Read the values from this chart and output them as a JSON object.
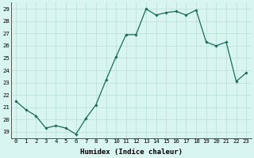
{
  "xlabel": "Humidex (Indice chaleur)",
  "x": [
    0,
    1,
    2,
    3,
    4,
    5,
    6,
    7,
    8,
    9,
    10,
    11,
    12,
    13,
    14,
    15,
    16,
    17,
    18,
    19,
    20,
    21,
    22,
    23
  ],
  "y": [
    21.5,
    20.8,
    20.3,
    19.3,
    19.5,
    19.3,
    18.8,
    20.1,
    21.2,
    23.2,
    25.1,
    26.9,
    26.9,
    29.0,
    28.5,
    28.7,
    28.8,
    28.5,
    28.9,
    26.3,
    26.0,
    26.3,
    23.1,
    23.8
  ],
  "line_color": "#1a6b5a",
  "marker": "D",
  "marker_size": 1.8,
  "linewidth": 0.9,
  "bg_color": "#d8f5f0",
  "grid_color": "#b8ddd6",
  "ylim": [
    18.5,
    29.5
  ],
  "yticks": [
    19,
    20,
    21,
    22,
    23,
    24,
    25,
    26,
    27,
    28,
    29
  ],
  "xticks": [
    0,
    1,
    2,
    3,
    4,
    5,
    6,
    7,
    8,
    9,
    10,
    11,
    12,
    13,
    14,
    15,
    16,
    17,
    18,
    19,
    20,
    21,
    22,
    23
  ],
  "tick_fontsize": 5.2,
  "label_fontsize": 6.5,
  "xlabel_fontweight": "bold"
}
